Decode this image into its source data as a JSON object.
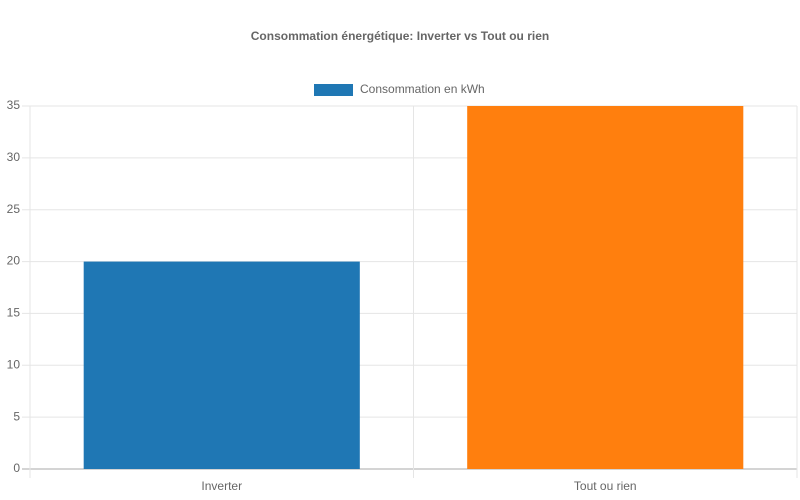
{
  "chart_data": {
    "type": "bar",
    "title": "Consommation énergétique: Inverter vs Tout ou rien",
    "categories": [
      "Inverter",
      "Tout ou rien"
    ],
    "series": [
      {
        "name": "Consommation en kWh",
        "color": "#1f77b4",
        "values": [
          20,
          35
        ]
      }
    ],
    "bar_colors": [
      "#1f77b4",
      "#ff7f0e"
    ],
    "ylim": [
      0,
      35
    ],
    "yticks": [
      0,
      5,
      10,
      15,
      20,
      25,
      30,
      35
    ],
    "grid": true,
    "legend": "top"
  }
}
